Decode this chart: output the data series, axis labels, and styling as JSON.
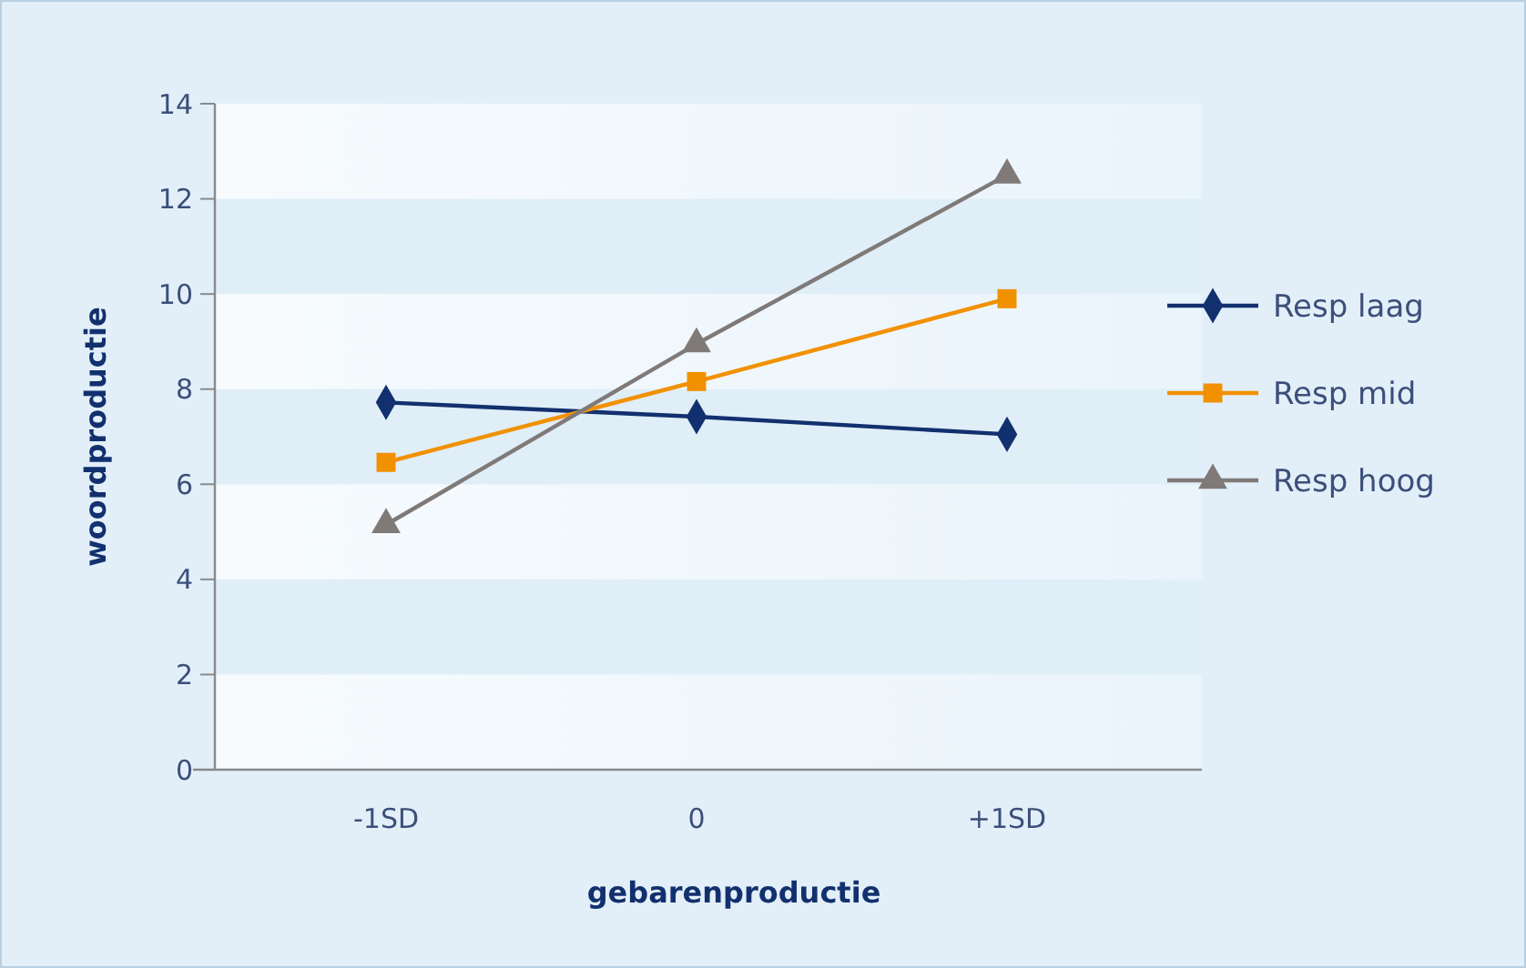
{
  "chart_data": {
    "type": "line",
    "xlabel": "gebarenproductie",
    "ylabel": "woordproductie",
    "categories": [
      "-1SD",
      "0",
      "+1SD"
    ],
    "series": [
      {
        "name": "Resp laag",
        "color": "#12306e",
        "marker": "diamond",
        "values": [
          7.72,
          7.42,
          7.05
        ]
      },
      {
        "name": "Resp mid",
        "color": "#f29100",
        "marker": "square",
        "values": [
          6.46,
          8.16,
          9.9
        ]
      },
      {
        "name": "Resp hoog",
        "color": "#7f7a78",
        "marker": "triangle",
        "values": [
          5.15,
          8.95,
          12.5
        ]
      }
    ],
    "ylim": [
      0,
      14
    ],
    "yticks": [
      0,
      2,
      4,
      6,
      8,
      10,
      12,
      14
    ],
    "legend": "right"
  }
}
